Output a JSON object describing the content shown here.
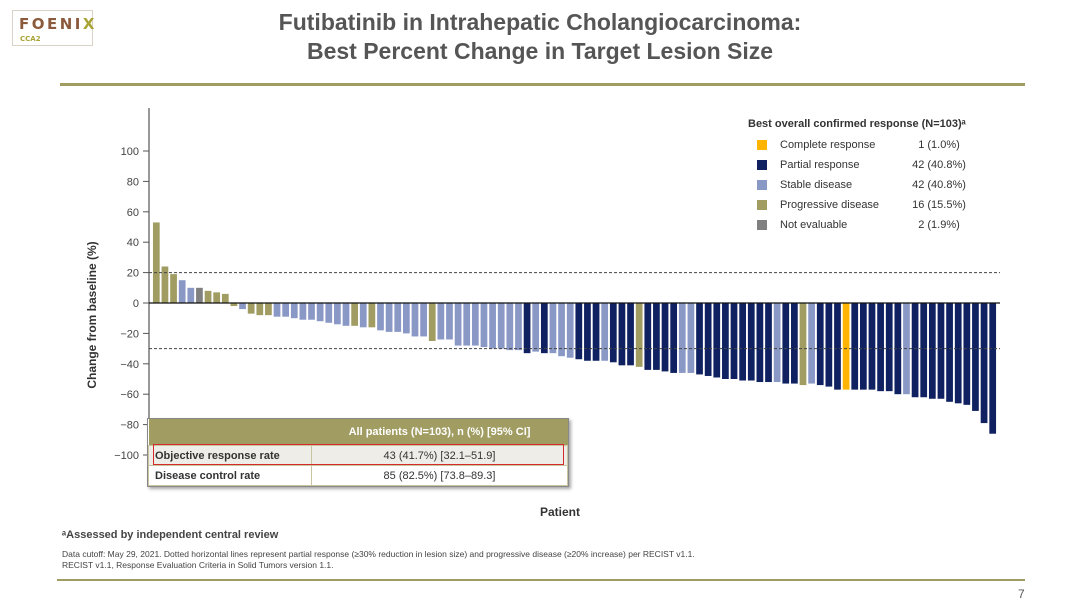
{
  "logo": {
    "brand_main": "FOENI",
    "brand_x": "X",
    "brand_sub": "CCA2"
  },
  "title": {
    "line1": "Futibatinib in Intrahepatic Cholangiocarcinoma:",
    "line2": "Best Percent Change in Target Lesion Size"
  },
  "legend": {
    "title": "Best overall confirmed response (N=103)ᵃ",
    "items": [
      {
        "label": "Complete response",
        "value": "1 (1.0%)",
        "color": "#ffb400",
        "key": "CR"
      },
      {
        "label": "Partial response",
        "value": "42 (40.8%)",
        "color": "#0f2160",
        "key": "PR"
      },
      {
        "label": "Stable disease",
        "value": "42 (40.8%)",
        "color": "#8a98c6",
        "key": "SD"
      },
      {
        "label": "Progressive disease",
        "value": "16 (15.5%)",
        "color": "#a09c62",
        "key": "PD"
      },
      {
        "label": "Not evaluable",
        "value": "2 (1.9%)",
        "color": "#808080",
        "key": "NE"
      }
    ]
  },
  "summary_table": {
    "header": "All patients (N=103), n (%) [95% CI]",
    "rows": [
      {
        "label": "Objective response rate",
        "value": "43 (41.7%) [32.1–51.9]",
        "highlighted": true
      },
      {
        "label": "Disease control rate",
        "value": "85 (82.5%) [73.8–89.3]",
        "highlighted": false
      }
    ]
  },
  "footnotes": {
    "a": "ᵃAssessed by independent central review",
    "line1": "Data cutoff: May 29, 2021. Dotted horizontal lines represent partial response (≥30% reduction in lesion size) and progressive disease (≥20% increase) per RECIST v1.1.",
    "line2": "RECIST v1.1, Response Evaluation Criteria in Solid Tumors version 1.1."
  },
  "page_number": "7",
  "chart_data": {
    "type": "bar",
    "title": "Best Percent Change in Target Lesion Size",
    "xlabel": "Patient",
    "ylabel": "Change from baseline (%)",
    "ylim": [
      -110,
      125
    ],
    "yticks": [
      100,
      80,
      60,
      40,
      20,
      0,
      -20,
      -40,
      -60,
      -80,
      -100
    ],
    "ytick_labels": [
      "100",
      "80",
      "60",
      "40",
      "20",
      "0",
      "−20",
      "−40",
      "−60",
      "−80",
      "−100"
    ],
    "reference_lines": [
      20,
      -30
    ],
    "grid": false,
    "legend_position": "top-right",
    "bars": [
      {
        "v": 53,
        "c": "PD"
      },
      {
        "v": 24,
        "c": "PD"
      },
      {
        "v": 19,
        "c": "PD"
      },
      {
        "v": 15,
        "c": "SD"
      },
      {
        "v": 10,
        "c": "SD"
      },
      {
        "v": 10,
        "c": "NE"
      },
      {
        "v": 8,
        "c": "PD"
      },
      {
        "v": 7,
        "c": "PD"
      },
      {
        "v": 6,
        "c": "PD"
      },
      {
        "v": -2,
        "c": "PD"
      },
      {
        "v": -4,
        "c": "SD"
      },
      {
        "v": -7,
        "c": "PD"
      },
      {
        "v": -8,
        "c": "PD"
      },
      {
        "v": -8,
        "c": "PD"
      },
      {
        "v": -9,
        "c": "SD"
      },
      {
        "v": -9,
        "c": "SD"
      },
      {
        "v": -10,
        "c": "SD"
      },
      {
        "v": -11,
        "c": "SD"
      },
      {
        "v": -11,
        "c": "SD"
      },
      {
        "v": -12,
        "c": "SD"
      },
      {
        "v": -13,
        "c": "SD"
      },
      {
        "v": -14,
        "c": "SD"
      },
      {
        "v": -15,
        "c": "SD"
      },
      {
        "v": -15,
        "c": "PD"
      },
      {
        "v": -16,
        "c": "SD"
      },
      {
        "v": -16,
        "c": "PD"
      },
      {
        "v": -18,
        "c": "SD"
      },
      {
        "v": -19,
        "c": "SD"
      },
      {
        "v": -19,
        "c": "SD"
      },
      {
        "v": -20,
        "c": "SD"
      },
      {
        "v": -22,
        "c": "SD"
      },
      {
        "v": -22,
        "c": "SD"
      },
      {
        "v": -25,
        "c": "PD"
      },
      {
        "v": -24,
        "c": "SD"
      },
      {
        "v": -24,
        "c": "SD"
      },
      {
        "v": -28,
        "c": "SD"
      },
      {
        "v": -28,
        "c": "SD"
      },
      {
        "v": -28,
        "c": "SD"
      },
      {
        "v": -29,
        "c": "SD"
      },
      {
        "v": -30,
        "c": "SD"
      },
      {
        "v": -30,
        "c": "SD"
      },
      {
        "v": -31,
        "c": "SD"
      },
      {
        "v": -31,
        "c": "SD"
      },
      {
        "v": -33,
        "c": "PR"
      },
      {
        "v": -32,
        "c": "SD"
      },
      {
        "v": -33,
        "c": "PR"
      },
      {
        "v": -33,
        "c": "SD"
      },
      {
        "v": -35,
        "c": "SD"
      },
      {
        "v": -36,
        "c": "SD"
      },
      {
        "v": -37,
        "c": "PR"
      },
      {
        "v": -38,
        "c": "PR"
      },
      {
        "v": -38,
        "c": "PR"
      },
      {
        "v": -38,
        "c": "SD"
      },
      {
        "v": -39,
        "c": "PR"
      },
      {
        "v": -41,
        "c": "PR"
      },
      {
        "v": -41,
        "c": "PR"
      },
      {
        "v": -42,
        "c": "PD"
      },
      {
        "v": -44,
        "c": "PR"
      },
      {
        "v": -44,
        "c": "PR"
      },
      {
        "v": -45,
        "c": "PR"
      },
      {
        "v": -46,
        "c": "PR"
      },
      {
        "v": -46,
        "c": "SD"
      },
      {
        "v": -46,
        "c": "SD"
      },
      {
        "v": -47,
        "c": "PR"
      },
      {
        "v": -48,
        "c": "PR"
      },
      {
        "v": -49,
        "c": "PR"
      },
      {
        "v": -50,
        "c": "PR"
      },
      {
        "v": -50,
        "c": "PR"
      },
      {
        "v": -51,
        "c": "PR"
      },
      {
        "v": -51,
        "c": "PR"
      },
      {
        "v": -52,
        "c": "PR"
      },
      {
        "v": -52,
        "c": "PR"
      },
      {
        "v": -52,
        "c": "SD"
      },
      {
        "v": -53,
        "c": "PR"
      },
      {
        "v": -53,
        "c": "PR"
      },
      {
        "v": -54,
        "c": "PD"
      },
      {
        "v": -53,
        "c": "SD"
      },
      {
        "v": -54,
        "c": "PR"
      },
      {
        "v": -55,
        "c": "PR"
      },
      {
        "v": -57,
        "c": "PR"
      },
      {
        "v": -57,
        "c": "CR"
      },
      {
        "v": -57,
        "c": "PR"
      },
      {
        "v": -57,
        "c": "PR"
      },
      {
        "v": -57,
        "c": "PR"
      },
      {
        "v": -58,
        "c": "PR"
      },
      {
        "v": -58,
        "c": "PR"
      },
      {
        "v": -60,
        "c": "PR"
      },
      {
        "v": -60,
        "c": "SD"
      },
      {
        "v": -62,
        "c": "PR"
      },
      {
        "v": -62,
        "c": "PR"
      },
      {
        "v": -63,
        "c": "PR"
      },
      {
        "v": -63,
        "c": "PR"
      },
      {
        "v": -65,
        "c": "PR"
      },
      {
        "v": -66,
        "c": "PR"
      },
      {
        "v": -67,
        "c": "PR"
      },
      {
        "v": -71,
        "c": "PR"
      },
      {
        "v": -79,
        "c": "PR"
      },
      {
        "v": -86,
        "c": "PR"
      }
    ]
  }
}
